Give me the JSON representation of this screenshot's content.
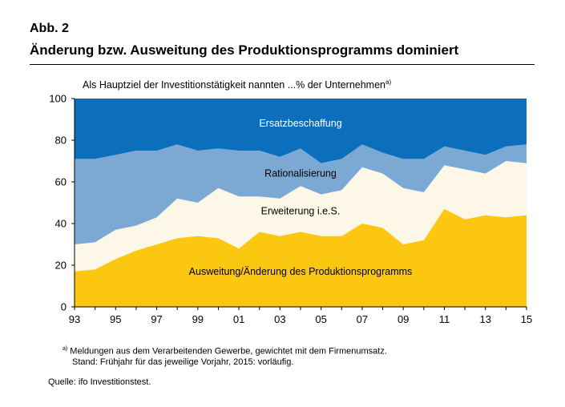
{
  "figure_label": "Abb. 2",
  "headline": "Änderung bzw. Ausweitung des Produktionsprogramms dominiert",
  "subtitle": "Als Hauptziel der Investitionstätigkeit nannten ...% der Unternehmen",
  "subtitle_marker": "a)",
  "footnote_marker": "a)",
  "footnote_line1": "Meldungen aus dem Verarbeitenden Gewerbe, gewichtet mit dem Firmenumsatz.",
  "footnote_line2": "Stand: Frühjahr für das jeweilige Vorjahr, 2015: vorläufig.",
  "source": "Quelle: ifo Investitionstest.",
  "colors": {
    "ersatzbeschaffung": "#0b6fbb",
    "rationalisierung": "#7ba9d4",
    "erweiterung": "#fdf7e7",
    "ausweitung": "#fcc710"
  },
  "chart_data": {
    "type": "area",
    "stacked": true,
    "title": "Als Hauptziel der Investitionstätigkeit nannten ...% der Unternehmen",
    "xlabel": "",
    "ylabel": "",
    "x": [
      1993,
      1994,
      1995,
      1996,
      1997,
      1998,
      1999,
      2000,
      2001,
      2002,
      2003,
      2004,
      2005,
      2006,
      2007,
      2008,
      2009,
      2010,
      2011,
      2012,
      2013,
      2014,
      2015
    ],
    "x_tick_labels": [
      "93",
      "95",
      "97",
      "99",
      "01",
      "03",
      "05",
      "07",
      "09",
      "11",
      "13",
      "15"
    ],
    "x_tick_values": [
      1993,
      1995,
      1997,
      1999,
      2001,
      2003,
      2005,
      2007,
      2009,
      2011,
      2013,
      2015
    ],
    "y_ticks": [
      0,
      20,
      40,
      60,
      80,
      100
    ],
    "ylim": [
      0,
      100
    ],
    "series": [
      {
        "name": "Ausweitung/Änderung des Produktionsprogramms",
        "color_key": "ausweitung",
        "values": [
          17,
          18,
          23,
          27,
          30,
          33,
          34,
          33,
          28,
          36,
          34,
          36,
          34,
          34,
          40,
          38,
          30,
          32,
          47,
          42,
          44,
          43,
          44
        ]
      },
      {
        "name": "Erweiterung i.e.S.",
        "color_key": "erweiterung",
        "values": [
          13,
          13,
          14,
          12,
          13,
          19,
          16,
          24,
          25,
          17,
          18,
          22,
          20,
          22,
          27,
          26,
          27,
          23,
          21,
          24,
          20,
          27,
          25
        ]
      },
      {
        "name": "Rationalisierung",
        "color_key": "rationalisierung",
        "values": [
          41,
          40,
          36,
          36,
          32,
          26,
          25,
          19,
          22,
          22,
          20,
          18,
          15,
          15,
          11,
          10,
          14,
          16,
          9,
          9,
          9,
          7,
          9
        ]
      },
      {
        "name": "Ersatzbeschaffung",
        "color_key": "ersatzbeschaffung",
        "values": [
          29,
          29,
          27,
          25,
          25,
          22,
          25,
          24,
          25,
          25,
          28,
          24,
          31,
          29,
          22,
          26,
          29,
          29,
          23,
          25,
          27,
          23,
          22
        ]
      }
    ],
    "area_labels": [
      "Ersatzbeschaffung",
      "Rationalisierung",
      "Erweiterung i.e.S.",
      "Ausweitung/Änderung des Produktionsprogramms"
    ],
    "area_label_anchor": [
      [
        2004,
        88
      ],
      [
        2004,
        64
      ],
      [
        2004,
        46
      ],
      [
        2004,
        17
      ]
    ],
    "grid": false
  }
}
